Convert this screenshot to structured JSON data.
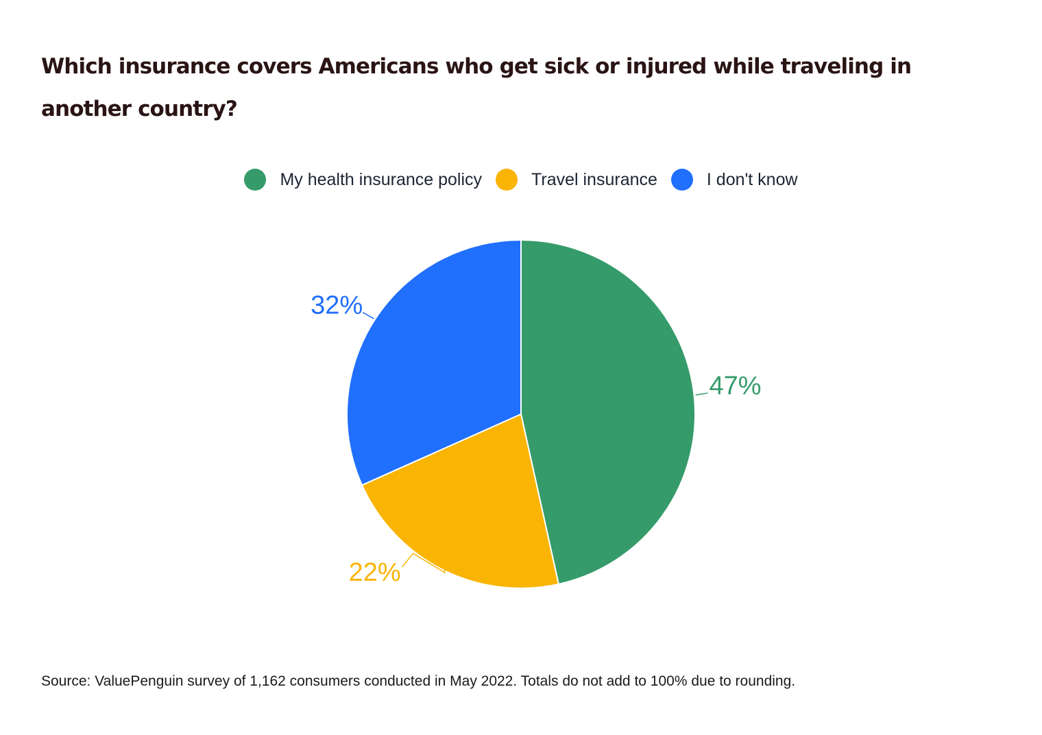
{
  "chart_data": {
    "type": "pie",
    "title": "Which insurance covers Americans who get sick or injured while traveling in another country?",
    "legend_position": "top",
    "series": [
      {
        "name": "My health insurance policy",
        "value": 47,
        "label": "47%",
        "color": "#359b6a"
      },
      {
        "name": "Travel insurance",
        "value": 22,
        "label": "22%",
        "color": "#f9b404"
      },
      {
        "name": "I don't know",
        "value": 32,
        "label": "32%",
        "color": "#206ffd"
      }
    ]
  },
  "source_note": "Source: ValuePenguin survey of 1,162 consumers conducted in May 2022. Totals do not add to 100% due to rounding."
}
